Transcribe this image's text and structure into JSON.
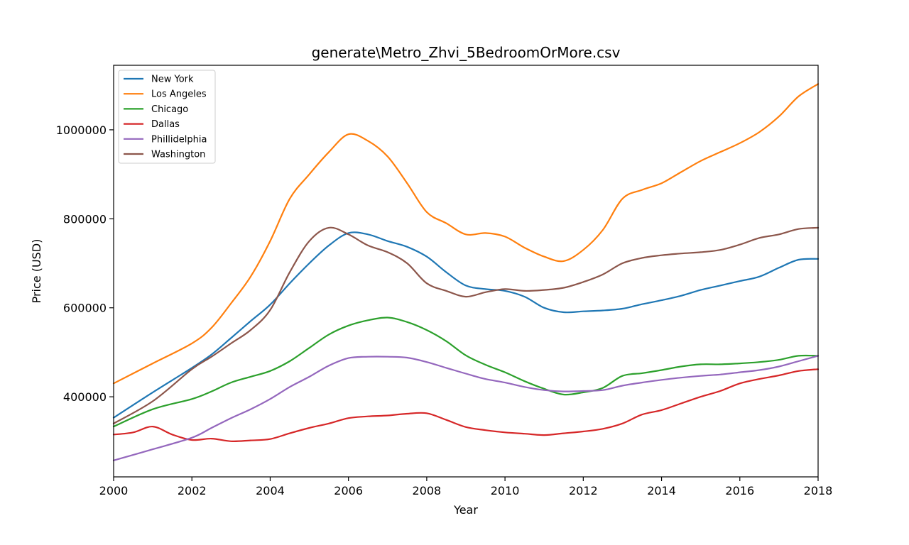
{
  "chart_data": {
    "type": "line",
    "title": "generate\\Metro_Zhvi_5BedroomOrMore.csv",
    "xlabel": "Year",
    "ylabel": "Price (USD)",
    "xlim": [
      2000,
      2018
    ],
    "ylim": [
      220000,
      1145000
    ],
    "xticks": [
      2000,
      2002,
      2004,
      2006,
      2008,
      2010,
      2012,
      2014,
      2016,
      2018
    ],
    "yticks": [
      400000,
      600000,
      800000,
      1000000
    ],
    "grid": false,
    "legend_position": "top-left",
    "series": [
      {
        "name": "New York",
        "color": "#1f77b4",
        "x": [
          2000,
          2001,
          2002,
          2002.5,
          2003,
          2003.5,
          2004,
          2004.5,
          2005,
          2005.5,
          2006,
          2006.5,
          2007,
          2007.5,
          2008,
          2008.5,
          2009,
          2009.5,
          2010,
          2010.5,
          2011,
          2011.5,
          2012,
          2012.5,
          2013,
          2013.5,
          2014,
          2014.5,
          2015,
          2015.5,
          2016,
          2016.5,
          2017,
          2017.5,
          2018
        ],
        "values": [
          353000,
          410000,
          465000,
          495000,
          532000,
          570000,
          607000,
          655000,
          700000,
          740000,
          768000,
          765000,
          750000,
          737000,
          715000,
          680000,
          650000,
          642000,
          638000,
          625000,
          600000,
          590000,
          592000,
          594000,
          598000,
          608000,
          617000,
          627000,
          640000,
          650000,
          660000,
          670000,
          690000,
          708000,
          710000
        ]
      },
      {
        "name": "Los Angeles",
        "color": "#ff7f0e",
        "x": [
          2000,
          2001,
          2002,
          2002.5,
          2003,
          2003.5,
          2004,
          2004.5,
          2005,
          2005.5,
          2006,
          2006.5,
          2007,
          2007.5,
          2008,
          2008.5,
          2009,
          2009.5,
          2010,
          2010.5,
          2011,
          2011.5,
          2012,
          2012.5,
          2013,
          2013.5,
          2014,
          2014.5,
          2015,
          2015.5,
          2016,
          2016.5,
          2017,
          2017.5,
          2018
        ],
        "values": [
          430000,
          475000,
          520000,
          555000,
          610000,
          670000,
          750000,
          845000,
          900000,
          950000,
          990000,
          975000,
          940000,
          880000,
          815000,
          790000,
          765000,
          768000,
          760000,
          735000,
          715000,
          705000,
          730000,
          775000,
          845000,
          865000,
          880000,
          905000,
          930000,
          950000,
          970000,
          995000,
          1030000,
          1075000,
          1103000
        ]
      },
      {
        "name": "Chicago",
        "color": "#2ca02c",
        "x": [
          2000,
          2001,
          2002,
          2002.5,
          2003,
          2003.5,
          2004,
          2004.5,
          2005,
          2005.5,
          2006,
          2006.5,
          2007,
          2007.5,
          2008,
          2008.5,
          2009,
          2009.5,
          2010,
          2010.5,
          2011,
          2011.5,
          2012,
          2012.5,
          2013,
          2013.5,
          2014,
          2014.5,
          2015,
          2015.5,
          2016,
          2016.5,
          2017,
          2017.5,
          2018
        ],
        "values": [
          333000,
          372000,
          395000,
          412000,
          432000,
          445000,
          458000,
          480000,
          510000,
          540000,
          560000,
          572000,
          578000,
          568000,
          550000,
          525000,
          493000,
          472000,
          455000,
          435000,
          418000,
          405000,
          410000,
          420000,
          447000,
          453000,
          460000,
          468000,
          473000,
          473000,
          475000,
          478000,
          483000,
          492000,
          492000
        ]
      },
      {
        "name": "Dallas",
        "color": "#d62728",
        "x": [
          2000,
          2000.5,
          2001,
          2001.5,
          2002,
          2002.5,
          2003,
          2003.5,
          2004,
          2004.5,
          2005,
          2005.5,
          2006,
          2006.5,
          2007,
          2007.5,
          2008,
          2008.5,
          2009,
          2009.5,
          2010,
          2010.5,
          2011,
          2011.5,
          2012,
          2012.5,
          2013,
          2013.5,
          2014,
          2014.5,
          2015,
          2015.5,
          2016,
          2016.5,
          2017,
          2017.5,
          2018
        ],
        "values": [
          315000,
          320000,
          333000,
          315000,
          303000,
          306000,
          300000,
          302000,
          305000,
          318000,
          330000,
          340000,
          352000,
          356000,
          358000,
          362000,
          363000,
          348000,
          332000,
          325000,
          320000,
          317000,
          314000,
          318000,
          322000,
          328000,
          340000,
          360000,
          370000,
          385000,
          400000,
          413000,
          430000,
          440000,
          448000,
          458000,
          462000
        ]
      },
      {
        "name": "Phillidelphia",
        "color": "#9467bd",
        "x": [
          2000,
          2001,
          2002,
          2002.5,
          2003,
          2003.5,
          2004,
          2004.5,
          2005,
          2005.5,
          2006,
          2006.5,
          2007,
          2007.5,
          2008,
          2008.5,
          2009,
          2009.5,
          2010,
          2010.5,
          2011,
          2011.5,
          2012,
          2012.5,
          2013,
          2013.5,
          2014,
          2014.5,
          2015,
          2015.5,
          2016,
          2016.5,
          2017,
          2017.5,
          2018
        ],
        "values": [
          257000,
          282000,
          308000,
          330000,
          352000,
          372000,
          395000,
          422000,
          445000,
          470000,
          487000,
          490000,
          490000,
          488000,
          478000,
          465000,
          452000,
          440000,
          432000,
          422000,
          415000,
          412000,
          413000,
          415000,
          425000,
          432000,
          438000,
          443000,
          447000,
          450000,
          455000,
          460000,
          468000,
          480000,
          492000
        ]
      },
      {
        "name": "Washington",
        "color": "#8c564b",
        "x": [
          2000,
          2001,
          2002,
          2002.5,
          2003,
          2003.5,
          2004,
          2004.5,
          2005,
          2005.5,
          2006,
          2006.5,
          2007,
          2007.5,
          2008,
          2008.5,
          2009,
          2009.5,
          2010,
          2010.5,
          2011,
          2011.5,
          2012,
          2012.5,
          2013,
          2013.5,
          2014,
          2014.5,
          2015,
          2015.5,
          2016,
          2016.5,
          2017,
          2017.5,
          2018
        ],
        "values": [
          340000,
          390000,
          462000,
          490000,
          520000,
          550000,
          595000,
          680000,
          750000,
          780000,
          765000,
          740000,
          725000,
          700000,
          655000,
          638000,
          625000,
          635000,
          642000,
          638000,
          640000,
          645000,
          658000,
          675000,
          700000,
          712000,
          718000,
          722000,
          725000,
          730000,
          742000,
          757000,
          765000,
          777000,
          780000
        ]
      }
    ]
  }
}
